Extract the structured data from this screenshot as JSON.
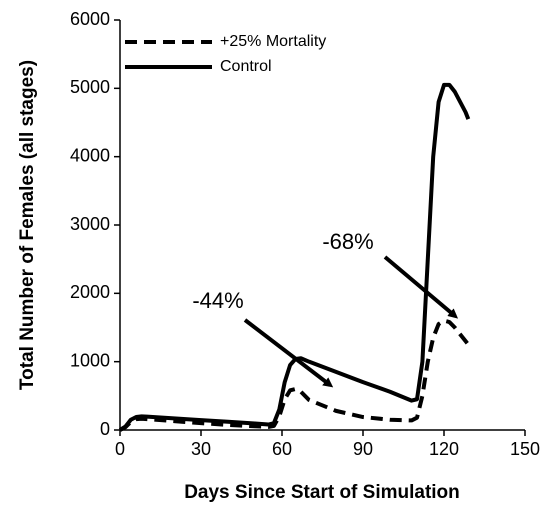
{
  "chart_data": {
    "type": "line",
    "xlabel": "Days Since Start of Simulation",
    "ylabel": "Total Number of Females (all stages)",
    "x": [
      0,
      2,
      4,
      6,
      8,
      10,
      20,
      30,
      40,
      50,
      55,
      57,
      59,
      61,
      63,
      65,
      67,
      70,
      80,
      90,
      100,
      108,
      110,
      112,
      114,
      116,
      118,
      120,
      122,
      124,
      126,
      128,
      129
    ],
    "series": [
      {
        "name": "+25% Mortality",
        "color": "#000000",
        "linestyle": "dashed",
        "values": [
          0,
          40,
          120,
          160,
          165,
          160,
          130,
          100,
          75,
          55,
          45,
          60,
          200,
          450,
          580,
          600,
          560,
          440,
          280,
          190,
          150,
          140,
          180,
          500,
          1000,
          1350,
          1550,
          1600,
          1580,
          1500,
          1400,
          1300,
          1250
        ]
      },
      {
        "name": "Control",
        "color": "#000000",
        "linestyle": "solid",
        "values": [
          0,
          50,
          150,
          190,
          200,
          195,
          170,
          145,
          120,
          95,
          80,
          100,
          300,
          700,
          950,
          1040,
          1050,
          1000,
          850,
          700,
          560,
          430,
          450,
          1000,
          2500,
          4000,
          4800,
          5050,
          5050,
          4950,
          4800,
          4650,
          4550
        ]
      }
    ],
    "xlim": [
      0,
      150
    ],
    "xticks": [
      0,
      30,
      60,
      90,
      120,
      150
    ],
    "ylim": [
      0,
      6000
    ],
    "yticks": [
      0,
      1000,
      2000,
      3000,
      4000,
      5000,
      6000
    ],
    "annotations": [
      "-44%",
      "-68%"
    ],
    "legend": "upper left"
  }
}
